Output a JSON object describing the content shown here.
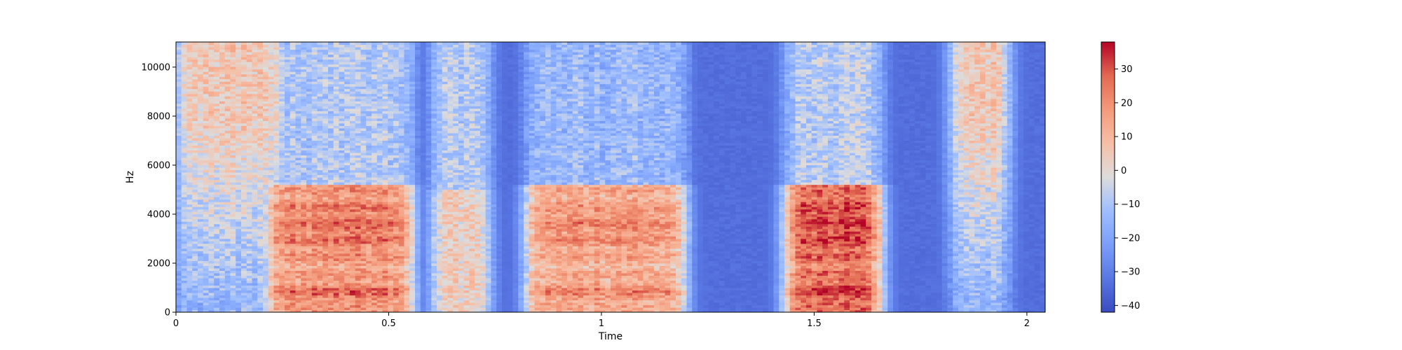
{
  "chart_data": {
    "type": "heatmap",
    "title": "",
    "xlabel": "Time",
    "ylabel": "Hz",
    "xlim": [
      0,
      2.043
    ],
    "ylim": [
      0,
      11025
    ],
    "x_ticks": [
      0,
      0.5,
      1,
      1.5,
      2
    ],
    "x_tick_labels": [
      "0",
      "0.5",
      "1",
      "1.5",
      "2"
    ],
    "y_ticks": [
      0,
      2000,
      4000,
      6000,
      8000,
      10000
    ],
    "y_tick_labels": [
      "0",
      "2000",
      "4000",
      "6000",
      "8000",
      "10000"
    ],
    "colormap": "coolwarm",
    "colors": {
      "low": "#3b4cc0",
      "mid": "#dddcdc",
      "high": "#b40426"
    },
    "colorbar": {
      "range": [
        -42,
        38
      ],
      "ticks": [
        30,
        20,
        10,
        0,
        -10,
        -20,
        -30,
        -40
      ],
      "tick_labels": [
        "30",
        "20",
        "10",
        "0",
        "−10",
        "−20",
        "−30",
        "−40"
      ]
    },
    "grid": false,
    "segments": [
      {
        "t": [
          0.0,
          0.26
        ],
        "kind": "fricative",
        "low_level": 0.3,
        "high_level": 0.56
      },
      {
        "t": [
          0.21,
          0.56
        ],
        "kind": "voiced",
        "low_level": 0.68,
        "high_level": 0.38
      },
      {
        "t": [
          0.6,
          0.74
        ],
        "kind": "mixed",
        "low_level": 0.55,
        "high_level": 0.4
      },
      {
        "t": [
          0.82,
          1.2
        ],
        "kind": "voiced",
        "low_level": 0.62,
        "high_level": 0.32
      },
      {
        "t": [
          1.43,
          1.66
        ],
        "kind": "voiced",
        "low_level": 0.78,
        "high_level": 0.4
      },
      {
        "t": [
          1.82,
          1.96
        ],
        "kind": "fricative",
        "low_level": 0.3,
        "high_level": 0.58
      }
    ]
  }
}
